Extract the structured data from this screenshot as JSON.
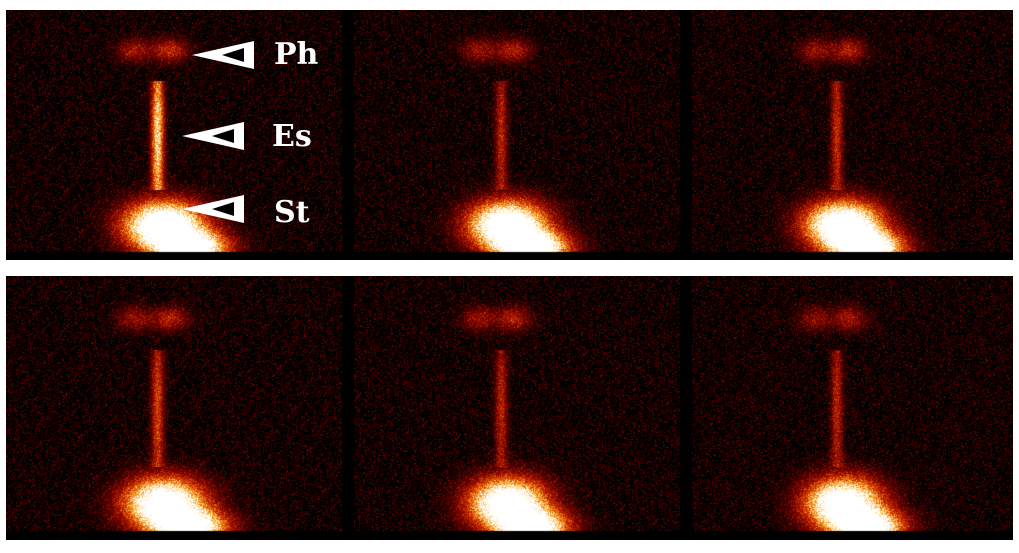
{
  "annotations": {
    "pharynx_label": "Ph",
    "esophagus_label": "Es",
    "stomach_label": "St"
  },
  "colors": {
    "background": "#000000",
    "separator": "#ffffff",
    "colormap": [
      "#000000",
      "#5a0000",
      "#a01000",
      "#d84000",
      "#f09020",
      "#ffd070",
      "#ffffff"
    ],
    "arrow": "#ffffff"
  },
  "frames": [
    {
      "row": 1,
      "col": 1,
      "ph": 0.55,
      "es": 0.85,
      "st": 1.0
    },
    {
      "row": 1,
      "col": 2,
      "ph": 0.5,
      "es": 0.35,
      "st": 1.0
    },
    {
      "row": 1,
      "col": 3,
      "ph": 0.5,
      "es": 0.38,
      "st": 1.0
    },
    {
      "row": 2,
      "col": 1,
      "ph": 0.5,
      "es": 0.45,
      "st": 0.95
    },
    {
      "row": 2,
      "col": 2,
      "ph": 0.5,
      "es": 0.35,
      "st": 0.95
    },
    {
      "row": 2,
      "col": 3,
      "ph": 0.45,
      "es": 0.35,
      "st": 0.95
    }
  ]
}
